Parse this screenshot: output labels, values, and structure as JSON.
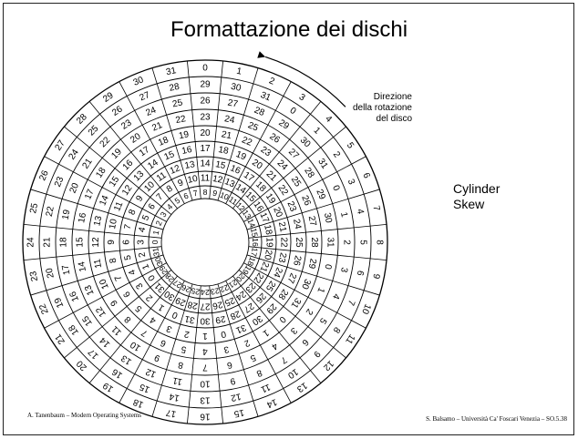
{
  "slide": {
    "title": "Formattazione dei dischi",
    "rotation_label": [
      "Direzione",
      "della rotazione",
      "del disco"
    ],
    "side_label": [
      "Cylinder",
      "Skew"
    ],
    "footer_left": "A. Tanenbaum – Modern Operating Systems",
    "footer_right": "S. Balsamo – Università Ca' Foscari Venezia – SO.5.38"
  },
  "disk": {
    "sectors_per_track": 32,
    "tracks": 9,
    "skew_per_track": 3
  }
}
